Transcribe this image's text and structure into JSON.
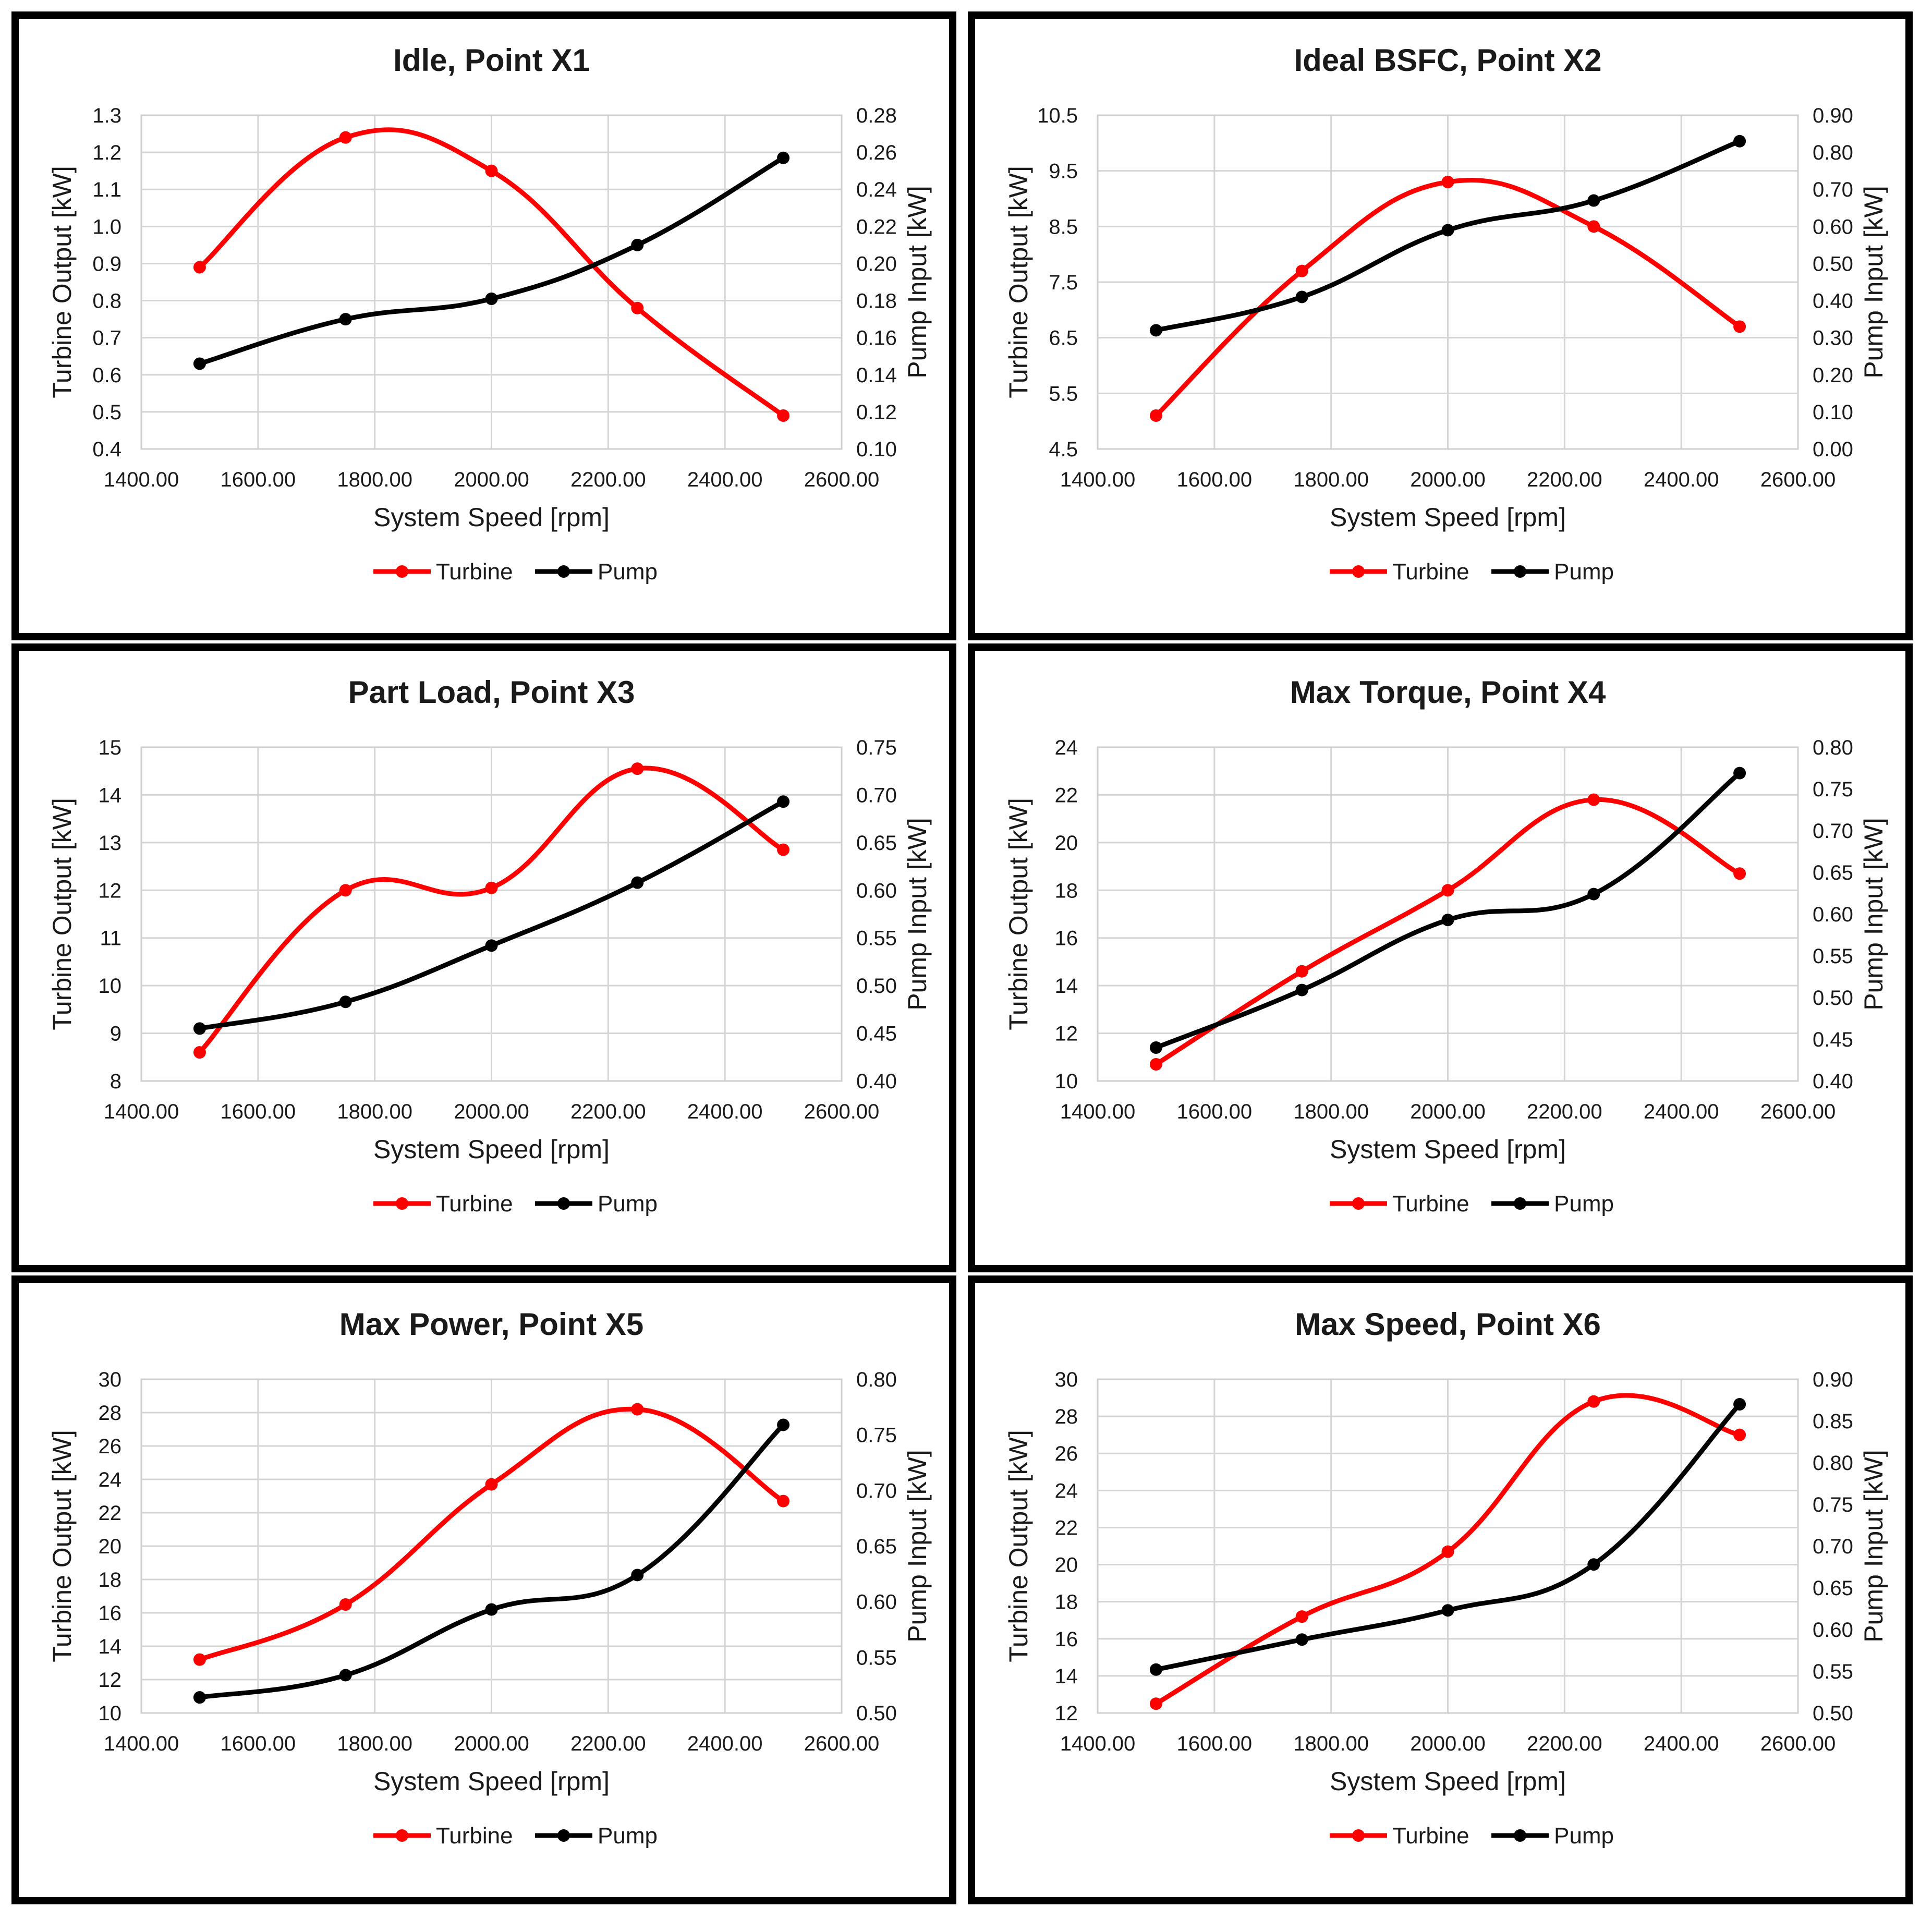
{
  "colors": {
    "turbine": "#ff0000",
    "pump": "#000000",
    "grid": "#d4d4d4",
    "border": "#000000"
  },
  "chart_data": [
    {
      "type": "line",
      "title": "Idle, Point X1",
      "xlabel": "System Speed [rpm]",
      "ylabel": "Turbine  Output  [kW]",
      "y2label": "Pump  Input  [kW]",
      "x": [
        1500,
        1750,
        2000,
        2250,
        2500
      ],
      "xlim": [
        1400,
        2600
      ],
      "xticks": [
        "1400.00",
        "1600.00",
        "1800.00",
        "2000.00",
        "2200.00",
        "2400.00",
        "2600.00"
      ],
      "ylim": [
        0.4,
        1.3
      ],
      "yticks": [
        "0.4",
        "0.5",
        "0.6",
        "0.7",
        "0.8",
        "0.9",
        "1.0",
        "1.1",
        "1.2",
        "1.3"
      ],
      "y2lim": [
        0.1,
        0.28
      ],
      "y2ticks": [
        "0.10",
        "0.12",
        "0.14",
        "0.16",
        "0.18",
        "0.20",
        "0.22",
        "0.24",
        "0.26",
        "0.28"
      ],
      "series": [
        {
          "name": "Turbine",
          "axis": "left",
          "values": [
            0.89,
            1.24,
            1.15,
            0.78,
            0.49
          ]
        },
        {
          "name": "Pump",
          "axis": "right",
          "values": [
            0.146,
            0.17,
            0.181,
            0.21,
            0.257
          ]
        }
      ],
      "legend": [
        "Turbine",
        "Pump"
      ]
    },
    {
      "type": "line",
      "title": "Ideal BSFC, Point X2",
      "xlabel": "System Speed [rpm]",
      "ylabel": "Turbine  Output  [kW]",
      "y2label": "Pump  Input  [kW]",
      "x": [
        1500,
        1750,
        2000,
        2250,
        2500
      ],
      "xlim": [
        1400,
        2600
      ],
      "xticks": [
        "1400.00",
        "1600.00",
        "1800.00",
        "2000.00",
        "2200.00",
        "2400.00",
        "2600.00"
      ],
      "ylim": [
        4.5,
        10.5
      ],
      "yticks": [
        "4.5",
        "5.5",
        "6.5",
        "7.5",
        "8.5",
        "9.5",
        "10.5"
      ],
      "y2lim": [
        0.0,
        0.9
      ],
      "y2ticks": [
        "0.00",
        "0.10",
        "0.20",
        "0.30",
        "0.40",
        "0.50",
        "0.60",
        "0.70",
        "0.80",
        "0.90"
      ],
      "series": [
        {
          "name": "Turbine",
          "axis": "left",
          "values": [
            5.1,
            7.7,
            9.3,
            8.5,
            6.7
          ]
        },
        {
          "name": "Pump",
          "axis": "right",
          "values": [
            0.32,
            0.41,
            0.59,
            0.67,
            0.83
          ]
        }
      ],
      "legend": [
        "Turbine",
        "Pump"
      ]
    },
    {
      "type": "line",
      "title": "Part Load, Point X3",
      "xlabel": "System Speed [rpm]",
      "ylabel": "Turbine  Output  [kW]",
      "y2label": "Pump Input  [kW]",
      "x": [
        1500,
        1750,
        2000,
        2250,
        2500
      ],
      "xlim": [
        1400,
        2600
      ],
      "xticks": [
        "1400.00",
        "1600.00",
        "1800.00",
        "2000.00",
        "2200.00",
        "2400.00",
        "2600.00"
      ],
      "ylim": [
        8,
        15
      ],
      "yticks": [
        "8",
        "9",
        "10",
        "11",
        "12",
        "13",
        "14",
        "15"
      ],
      "y2lim": [
        0.4,
        0.75
      ],
      "y2ticks": [
        "0.40",
        "0.45",
        "0.50",
        "0.55",
        "0.60",
        "0.65",
        "0.70",
        "0.75"
      ],
      "series": [
        {
          "name": "Turbine",
          "axis": "left",
          "values": [
            8.6,
            12.0,
            12.05,
            14.55,
            12.85
          ]
        },
        {
          "name": "Pump",
          "axis": "right",
          "values": [
            0.455,
            0.483,
            0.542,
            0.608,
            0.693
          ]
        }
      ],
      "legend": [
        "Turbine",
        "Pump"
      ]
    },
    {
      "type": "line",
      "title": "Max Torque, Point X4",
      "xlabel": "System Speed [rpm]",
      "ylabel": "Turbine  Output  [kW]",
      "y2label": "Pump  Input  [kW]",
      "x": [
        1500,
        1750,
        2000,
        2250,
        2500
      ],
      "xlim": [
        1400,
        2600
      ],
      "xticks": [
        "1400.00",
        "1600.00",
        "1800.00",
        "2000.00",
        "2200.00",
        "2400.00",
        "2600.00"
      ],
      "ylim": [
        10,
        24
      ],
      "yticks": [
        "10",
        "12",
        "14",
        "16",
        "18",
        "20",
        "22",
        "24"
      ],
      "y2lim": [
        0.4,
        0.8
      ],
      "y2ticks": [
        "0.40",
        "0.45",
        "0.50",
        "0.55",
        "0.60",
        "0.65",
        "0.70",
        "0.75",
        "0.80"
      ],
      "series": [
        {
          "name": "Turbine",
          "axis": "left",
          "values": [
            10.7,
            14.6,
            18.0,
            21.8,
            18.7
          ]
        },
        {
          "name": "Pump",
          "axis": "right",
          "values": [
            0.44,
            0.509,
            0.593,
            0.624,
            0.769
          ]
        }
      ],
      "legend": [
        "Turbine",
        "Pump"
      ]
    },
    {
      "type": "line",
      "title": "Max Power, Point X5",
      "xlabel": "System Speed [rpm]",
      "ylabel": "Turbine  Output  [kW]",
      "y2label": "Pump Input  [kW]",
      "x": [
        1500,
        1750,
        2000,
        2250,
        2500
      ],
      "xlim": [
        1400,
        2600
      ],
      "xticks": [
        "1400.00",
        "1600.00",
        "1800.00",
        "2000.00",
        "2200.00",
        "2400.00",
        "2600.00"
      ],
      "ylim": [
        10,
        30
      ],
      "yticks": [
        "10",
        "12",
        "14",
        "16",
        "18",
        "20",
        "22",
        "24",
        "26",
        "28",
        "30"
      ],
      "y2lim": [
        0.5,
        0.8
      ],
      "y2ticks": [
        "0.50",
        "0.55",
        "0.60",
        "0.65",
        "0.70",
        "0.75",
        "0.80"
      ],
      "series": [
        {
          "name": "Turbine",
          "axis": "left",
          "values": [
            13.2,
            16.5,
            23.7,
            28.2,
            22.7
          ]
        },
        {
          "name": "Pump",
          "axis": "right",
          "values": [
            0.514,
            0.534,
            0.593,
            0.624,
            0.759
          ]
        }
      ],
      "legend": [
        "Turbine",
        "Pump"
      ]
    },
    {
      "type": "line",
      "title": "Max Speed, Point X6",
      "xlabel": "System Speed [rpm]",
      "ylabel": "Turbine  Output  [kW]",
      "y2label": "Pump  Input  [kW]",
      "x": [
        1500,
        1750,
        2000,
        2250,
        2500
      ],
      "xlim": [
        1400,
        2600
      ],
      "xticks": [
        "1400.00",
        "1600.00",
        "1800.00",
        "2000.00",
        "2200.00",
        "2400.00",
        "2600.00"
      ],
      "ylim": [
        12,
        30
      ],
      "yticks": [
        "12",
        "14",
        "16",
        "18",
        "20",
        "22",
        "24",
        "26",
        "28",
        "30"
      ],
      "y2lim": [
        0.5,
        0.9
      ],
      "y2ticks": [
        "0.50",
        "0.55",
        "0.60",
        "0.65",
        "0.70",
        "0.75",
        "0.80",
        "0.85",
        "0.90"
      ],
      "series": [
        {
          "name": "Turbine",
          "axis": "left",
          "values": [
            12.5,
            17.2,
            20.7,
            28.8,
            27.0
          ]
        },
        {
          "name": "Pump",
          "axis": "right",
          "values": [
            0.552,
            0.588,
            0.623,
            0.678,
            0.87
          ]
        }
      ],
      "legend": [
        "Turbine",
        "Pump"
      ]
    }
  ]
}
